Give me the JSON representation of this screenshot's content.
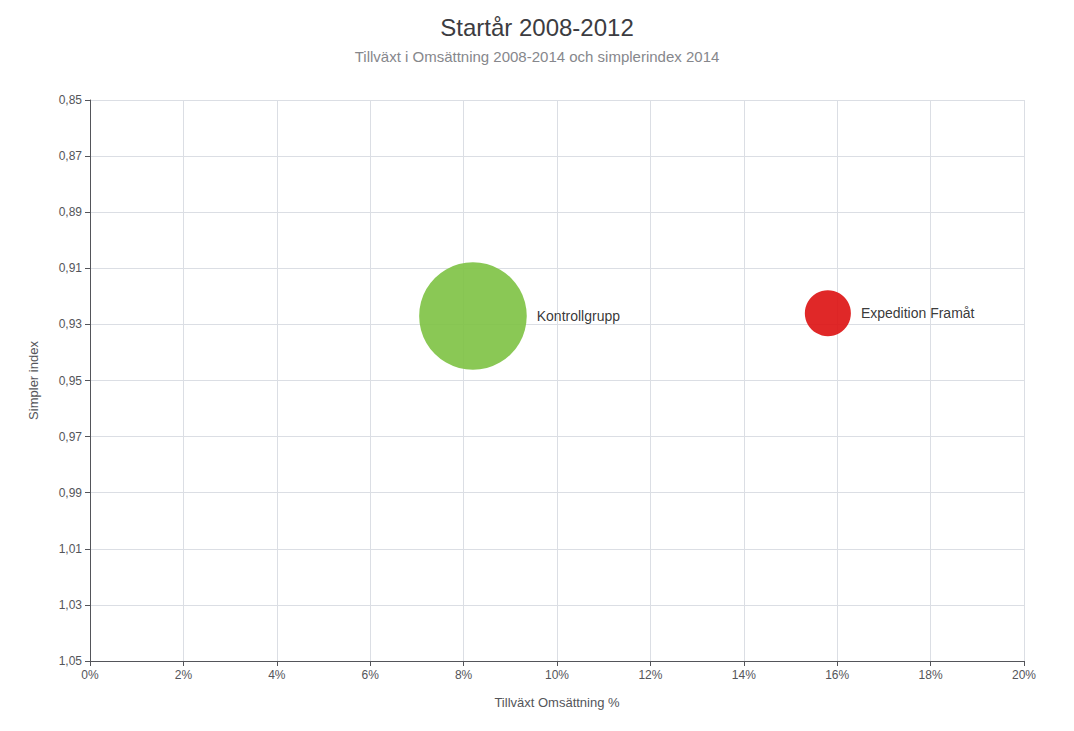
{
  "chart_data": {
    "type": "scatter",
    "title": "Startår 2008-2012",
    "subtitle": "Tillväxt i Omsättning 2008-2014 och simplerindex 2014",
    "xlabel": "Tillväxt Omsättning %",
    "ylabel": "Simpler index",
    "xlim": [
      0.0,
      0.2
    ],
    "xticks": [
      {
        "value": 0.0,
        "label": "0%"
      },
      {
        "value": 0.02,
        "label": "2%"
      },
      {
        "value": 0.04,
        "label": "4%"
      },
      {
        "value": 0.06,
        "label": "6%"
      },
      {
        "value": 0.08,
        "label": "8%"
      },
      {
        "value": 0.1,
        "label": "10%"
      },
      {
        "value": 0.12,
        "label": "12%"
      },
      {
        "value": 0.14,
        "label": "14%"
      },
      {
        "value": 0.16,
        "label": "16%"
      },
      {
        "value": 0.18,
        "label": "18%"
      },
      {
        "value": 0.2,
        "label": "20%"
      }
    ],
    "ylim": [
      1.05,
      0.85
    ],
    "yticks": [
      {
        "value": 0.85,
        "label": "0,85"
      },
      {
        "value": 0.87,
        "label": "0,87"
      },
      {
        "value": 0.89,
        "label": "0,89"
      },
      {
        "value": 0.91,
        "label": "0,91"
      },
      {
        "value": 0.93,
        "label": "0,93"
      },
      {
        "value": 0.95,
        "label": "0,95"
      },
      {
        "value": 0.97,
        "label": "0,97"
      },
      {
        "value": 0.99,
        "label": "0,99"
      },
      {
        "value": 1.01,
        "label": "1,01"
      },
      {
        "value": 1.03,
        "label": "1,03"
      },
      {
        "value": 1.05,
        "label": "1,05"
      }
    ],
    "grid": true,
    "series": [
      {
        "name": "Kontrollgrupp",
        "color": "#7dc242",
        "x": [
          0.082
        ],
        "values": [
          0.927
        ],
        "size": [
          6000
        ]
      },
      {
        "name": "Expedition Framåt",
        "color": "#dd1111",
        "x": [
          0.158
        ],
        "values": [
          0.926
        ],
        "size": [
          1100
        ]
      }
    ]
  }
}
